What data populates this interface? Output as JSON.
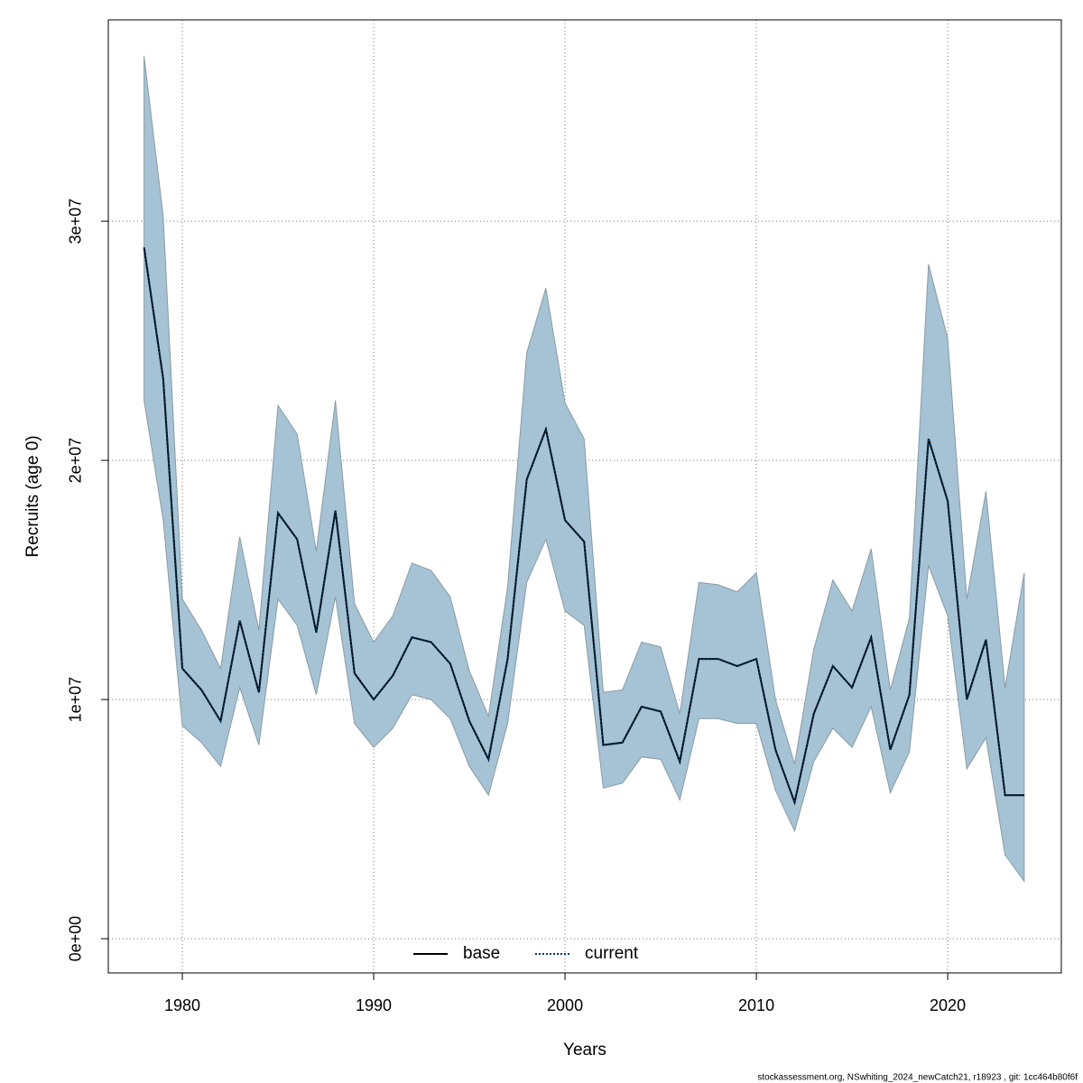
{
  "chart_data": {
    "type": "line",
    "xlabel": "Years",
    "ylabel": "Recruits (age 0)",
    "footnote": "stockassessment.org, NSwhiting_2024_newCatch21, r18923 , git: 1cc464b80f6f",
    "x": [
      1978,
      1979,
      1980,
      1981,
      1982,
      1983,
      1984,
      1985,
      1986,
      1987,
      1988,
      1989,
      1990,
      1991,
      1992,
      1993,
      1994,
      1995,
      1996,
      1997,
      1998,
      1999,
      2000,
      2001,
      2002,
      2003,
      2004,
      2005,
      2006,
      2007,
      2008,
      2009,
      2010,
      2011,
      2012,
      2013,
      2014,
      2015,
      2016,
      2017,
      2018,
      2019,
      2020,
      2021,
      2022,
      2023,
      2024
    ],
    "series": [
      {
        "name": "base",
        "color": "#000000",
        "dash": "solid",
        "values": [
          28900000,
          23400000,
          11300000,
          10400000,
          9100000,
          13300000,
          10300000,
          17800000,
          16700000,
          12800000,
          17900000,
          11100000,
          10000000,
          11000000,
          12600000,
          12400000,
          11500000,
          9100000,
          7500000,
          11700000,
          19200000,
          21300000,
          17500000,
          16600000,
          8100000,
          8200000,
          9700000,
          9500000,
          7400000,
          11700000,
          11700000,
          11400000,
          11700000,
          7900000,
          5700000,
          9400000,
          11400000,
          10500000,
          12600000,
          7900000,
          10200000,
          20900000,
          18300000,
          10000000,
          12500000,
          6000000,
          6000000
        ]
      },
      {
        "name": "current",
        "color": "#00345d",
        "dash": "dotted",
        "values": [
          28900000,
          23400000,
          11300000,
          10400000,
          9100000,
          13300000,
          10300000,
          17800000,
          16700000,
          12800000,
          17900000,
          11100000,
          10000000,
          11000000,
          12600000,
          12400000,
          11500000,
          9100000,
          7500000,
          11700000,
          19200000,
          21300000,
          17500000,
          16600000,
          8100000,
          8200000,
          9700000,
          9500000,
          7400000,
          11700000,
          11700000,
          11400000,
          11700000,
          7900000,
          5700000,
          9400000,
          11400000,
          10500000,
          12600000,
          7900000,
          10200000,
          20900000,
          18300000,
          10000000,
          12500000,
          6000000,
          6000000
        ]
      }
    ],
    "band": {
      "color": "#a5c3d4",
      "upper": [
        36900000,
        30200000,
        14200000,
        12900000,
        11300000,
        16800000,
        12900000,
        22300000,
        21100000,
        16200000,
        22500000,
        14000000,
        12400000,
        13500000,
        15700000,
        15400000,
        14300000,
        11200000,
        9300000,
        14700000,
        24500000,
        27200000,
        22400000,
        20900000,
        10300000,
        10400000,
        12400000,
        12200000,
        9400000,
        14900000,
        14800000,
        14500000,
        15300000,
        10000000,
        7300000,
        12100000,
        15000000,
        13700000,
        16300000,
        10400000,
        13400000,
        28200000,
        25100000,
        14200000,
        18700000,
        10500000,
        15300000
      ],
      "lower": [
        22500000,
        17500000,
        8900000,
        8200000,
        7200000,
        10500000,
        8100000,
        14200000,
        13100000,
        10200000,
        14300000,
        9000000,
        8000000,
        8800000,
        10200000,
        10000000,
        9200000,
        7200000,
        6000000,
        9000000,
        14900000,
        16700000,
        13700000,
        13100000,
        6300000,
        6500000,
        7600000,
        7500000,
        5800000,
        9200000,
        9200000,
        9000000,
        9000000,
        6200000,
        4500000,
        7400000,
        8800000,
        8000000,
        9700000,
        6100000,
        7800000,
        15600000,
        13500000,
        7100000,
        8400000,
        3500000,
        2400000
      ]
    },
    "xlim": [
      1976.13,
      2025.94
    ],
    "ylim": [
      -1430000,
      38420000
    ],
    "xticks": [
      1980,
      1990,
      2000,
      2010,
      2020
    ],
    "yticks": [
      {
        "value": 0,
        "label": "0e+00"
      },
      {
        "value": 10000000,
        "label": "1e+07"
      },
      {
        "value": 20000000,
        "label": "2e+07"
      },
      {
        "value": 30000000,
        "label": "3e+07"
      }
    ],
    "grid": true,
    "legend": "bottom"
  }
}
